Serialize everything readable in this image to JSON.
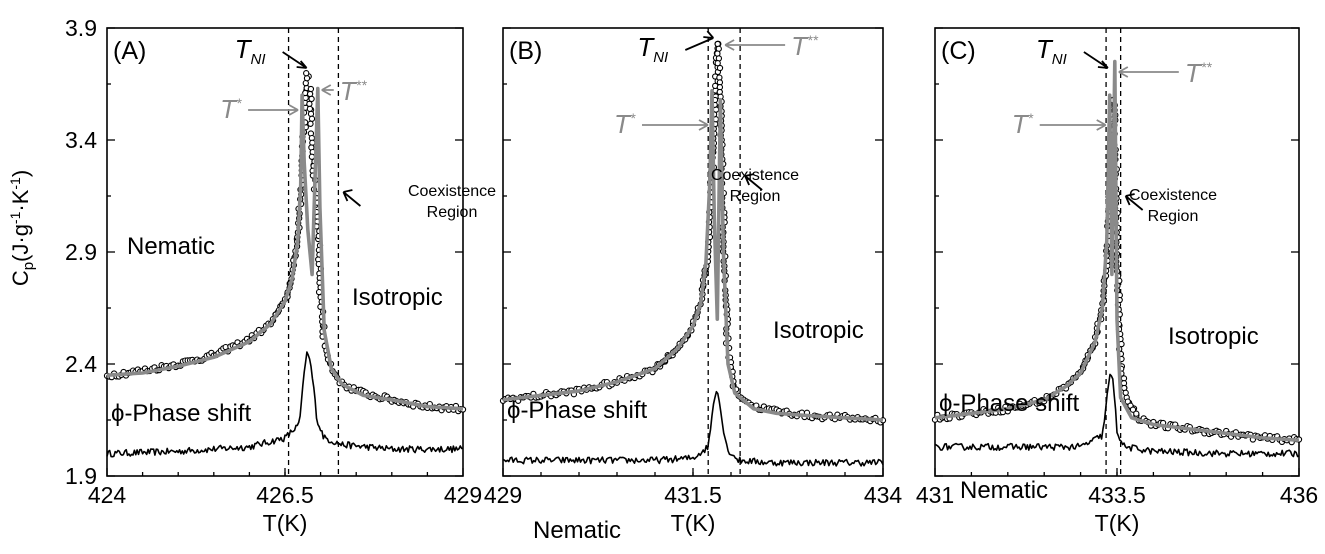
{
  "chart_data": [
    {
      "type": "scatter",
      "panel_label": "(A)",
      "xlabel": "T(K)",
      "ylabel": "Cp(J·g-1·K-1)",
      "xlim": [
        424,
        429
      ],
      "ylim": [
        1.9,
        3.9
      ],
      "xticks": [
        "424",
        "426.5",
        "429"
      ],
      "yticks": [
        "1.9",
        "2.4",
        "2.9",
        "3.4",
        "3.9"
      ],
      "x_ticks_values": [
        424,
        426.5,
        429
      ],
      "y_ticks_values": [
        1.9,
        2.4,
        2.9,
        3.4,
        3.9
      ],
      "y_axis_visible": true,
      "T_star": 426.74,
      "T_NI": 426.86,
      "T_star_star": 426.96,
      "coexistence_lines": [
        426.55,
        427.25
      ],
      "fit_curve": [
        [
          424,
          2.35
        ],
        [
          424.5,
          2.36
        ],
        [
          425,
          2.39
        ],
        [
          425.5,
          2.43
        ],
        [
          426,
          2.5
        ],
        [
          426.3,
          2.58
        ],
        [
          426.5,
          2.68
        ],
        [
          426.6,
          2.78
        ],
        [
          426.68,
          2.95
        ],
        [
          426.72,
          3.2
        ],
        [
          426.74,
          3.6
        ],
        [
          426.77,
          3.3
        ],
        [
          426.82,
          3.0
        ],
        [
          426.88,
          2.8
        ],
        [
          426.96,
          3.63
        ],
        [
          426.99,
          3.1
        ],
        [
          427.05,
          2.55
        ],
        [
          427.15,
          2.38
        ],
        [
          427.3,
          2.31
        ],
        [
          427.6,
          2.26
        ],
        [
          428,
          2.24
        ],
        [
          428.5,
          2.21
        ],
        [
          429,
          2.2
        ]
      ],
      "cp_points": [
        [
          424,
          2.35
        ],
        [
          424.5,
          2.37
        ],
        [
          425,
          2.4
        ],
        [
          425.5,
          2.44
        ],
        [
          426,
          2.51
        ],
        [
          426.3,
          2.58
        ],
        [
          426.5,
          2.68
        ],
        [
          426.6,
          2.8
        ],
        [
          426.7,
          3.05
        ],
        [
          426.78,
          3.5
        ],
        [
          426.82,
          3.72
        ],
        [
          426.85,
          3.65
        ],
        [
          426.88,
          3.45
        ],
        [
          426.91,
          3.2
        ],
        [
          426.94,
          3.1
        ],
        [
          426.97,
          2.95
        ],
        [
          427.0,
          2.7
        ],
        [
          427.05,
          2.5
        ],
        [
          427.15,
          2.38
        ],
        [
          427.3,
          2.31
        ],
        [
          427.6,
          2.27
        ],
        [
          428,
          2.24
        ],
        [
          428.5,
          2.21
        ],
        [
          429,
          2.2
        ]
      ],
      "phase_curve": [
        [
          424,
          2.0
        ],
        [
          425,
          2.01
        ],
        [
          426,
          2.03
        ],
        [
          426.5,
          2.07
        ],
        [
          426.7,
          2.13
        ],
        [
          426.8,
          2.45
        ],
        [
          426.85,
          2.42
        ],
        [
          426.9,
          2.3
        ],
        [
          426.95,
          2.15
        ],
        [
          427.05,
          2.07
        ],
        [
          427.3,
          2.04
        ],
        [
          428,
          2.02
        ],
        [
          429,
          2.02
        ]
      ],
      "labels": {
        "low_phase": "Nematic",
        "high_phase": "Isotropic",
        "phase_shift": "ϕ-Phase shift",
        "coexistence_line1": "Coexistence",
        "coexistence_line2": "Region"
      }
    },
    {
      "type": "scatter",
      "panel_label": "(B)",
      "xlabel": "T(K)",
      "ylabel": "",
      "xlim": [
        429,
        434
      ],
      "ylim": [
        1.9,
        3.9
      ],
      "xticks": [
        "429",
        "431.5",
        "434"
      ],
      "yticks": [],
      "x_ticks_values": [
        429,
        431.5,
        434
      ],
      "y_ticks_values": [
        1.9,
        2.4,
        2.9,
        3.4,
        3.9
      ],
      "y_axis_visible": false,
      "T_star": 431.75,
      "T_NI": 431.82,
      "T_star_star": 431.87,
      "coexistence_lines": [
        431.7,
        432.12
      ],
      "fit_curve": [
        [
          429,
          2.24
        ],
        [
          429.5,
          2.26
        ],
        [
          430,
          2.28
        ],
        [
          430.5,
          2.32
        ],
        [
          431,
          2.38
        ],
        [
          431.3,
          2.47
        ],
        [
          431.5,
          2.57
        ],
        [
          431.6,
          2.67
        ],
        [
          431.67,
          2.85
        ],
        [
          431.72,
          3.2
        ],
        [
          431.75,
          3.62
        ],
        [
          431.78,
          3.05
        ],
        [
          431.82,
          2.6
        ],
        [
          431.86,
          3.58
        ],
        [
          431.9,
          2.9
        ],
        [
          431.96,
          2.4
        ],
        [
          432.05,
          2.27
        ],
        [
          432.3,
          2.2
        ],
        [
          432.6,
          2.18
        ],
        [
          433,
          2.17
        ],
        [
          433.5,
          2.16
        ],
        [
          434,
          2.15
        ]
      ],
      "cp_points": [
        [
          429,
          2.24
        ],
        [
          429.5,
          2.26
        ],
        [
          430,
          2.28
        ],
        [
          430.5,
          2.32
        ],
        [
          431,
          2.38
        ],
        [
          431.3,
          2.47
        ],
        [
          431.5,
          2.57
        ],
        [
          431.6,
          2.67
        ],
        [
          431.7,
          2.9
        ],
        [
          431.76,
          3.3
        ],
        [
          431.8,
          3.6
        ],
        [
          431.83,
          3.85
        ],
        [
          431.85,
          3.7
        ],
        [
          431.88,
          3.25
        ],
        [
          431.92,
          2.75
        ],
        [
          431.96,
          2.45
        ],
        [
          432.05,
          2.28
        ],
        [
          432.3,
          2.21
        ],
        [
          432.6,
          2.19
        ],
        [
          433,
          2.17
        ],
        [
          433.5,
          2.16
        ],
        [
          434,
          2.15
        ]
      ],
      "phase_curve": [
        [
          429,
          1.97
        ],
        [
          430,
          1.97
        ],
        [
          431,
          1.97
        ],
        [
          431.5,
          1.98
        ],
        [
          431.7,
          2.03
        ],
        [
          431.78,
          2.25
        ],
        [
          431.82,
          2.3
        ],
        [
          431.88,
          2.15
        ],
        [
          431.95,
          2.02
        ],
        [
          432.1,
          1.97
        ],
        [
          432.5,
          1.96
        ],
        [
          433,
          1.96
        ],
        [
          434,
          1.96
        ]
      ],
      "labels": {
        "low_phase": "Nematic",
        "high_phase": "Isotropic",
        "phase_shift": "ϕ-Phase shift",
        "coexistence_line1": "Coexistence",
        "coexistence_line2": "Region"
      }
    },
    {
      "type": "scatter",
      "panel_label": "(C)",
      "xlabel": "T(K)",
      "ylabel": "",
      "xlim": [
        431,
        436
      ],
      "ylim": [
        1.9,
        3.9
      ],
      "xticks": [
        "431",
        "433.5",
        "436"
      ],
      "yticks": [],
      "x_ticks_values": [
        431,
        433.5,
        436
      ],
      "y_ticks_values": [
        1.9,
        2.4,
        2.9,
        3.4,
        3.9
      ],
      "y_axis_visible": false,
      "T_star": 433.4,
      "T_NI": 433.43,
      "T_star_star": 433.47,
      "coexistence_lines": [
        433.35,
        433.55
      ],
      "fit_curve": [
        [
          431,
          2.16
        ],
        [
          431.5,
          2.18
        ],
        [
          432,
          2.2
        ],
        [
          432.5,
          2.24
        ],
        [
          432.8,
          2.3
        ],
        [
          433,
          2.36
        ],
        [
          433.2,
          2.5
        ],
        [
          433.3,
          2.65
        ],
        [
          433.36,
          2.95
        ],
        [
          433.4,
          3.6
        ],
        [
          433.43,
          2.8
        ],
        [
          433.47,
          3.75
        ],
        [
          433.5,
          2.6
        ],
        [
          433.55,
          2.25
        ],
        [
          433.7,
          2.16
        ],
        [
          434,
          2.13
        ],
        [
          434.5,
          2.11
        ],
        [
          435,
          2.09
        ],
        [
          435.5,
          2.07
        ],
        [
          436,
          2.06
        ]
      ],
      "cp_points": [
        [
          431,
          2.16
        ],
        [
          431.5,
          2.18
        ],
        [
          432,
          2.2
        ],
        [
          432.5,
          2.24
        ],
        [
          432.8,
          2.3
        ],
        [
          433,
          2.36
        ],
        [
          433.2,
          2.5
        ],
        [
          433.3,
          2.66
        ],
        [
          433.38,
          2.95
        ],
        [
          433.42,
          3.3
        ],
        [
          433.45,
          3.6
        ],
        [
          433.47,
          3.4
        ],
        [
          433.5,
          2.9
        ],
        [
          433.53,
          2.6
        ],
        [
          433.56,
          2.4
        ],
        [
          433.62,
          2.25
        ],
        [
          433.8,
          2.16
        ],
        [
          434,
          2.13
        ],
        [
          434.5,
          2.11
        ],
        [
          435,
          2.09
        ],
        [
          435.5,
          2.07
        ],
        [
          436,
          2.06
        ]
      ],
      "phase_curve": [
        [
          431,
          2.03
        ],
        [
          432,
          2.03
        ],
        [
          433,
          2.03
        ],
        [
          433.3,
          2.08
        ],
        [
          433.4,
          2.35
        ],
        [
          433.45,
          2.32
        ],
        [
          433.5,
          2.1
        ],
        [
          433.6,
          2.03
        ],
        [
          434,
          2.01
        ],
        [
          435,
          2.0
        ],
        [
          436,
          2.0
        ]
      ],
      "labels": {
        "low_phase": "Nematic",
        "high_phase": "Isotropic",
        "phase_shift": "ϕ-Phase shift",
        "coexistence_line1": "Coexistence",
        "coexistence_line2": "Region"
      }
    }
  ],
  "legend": {
    "T_NI_main": "T",
    "T_NI_sub": "NI",
    "T_star_main": "T",
    "T_star_sup": "*",
    "T_star_star_main": "T",
    "T_star_star_sup": "**"
  },
  "colors": {
    "axes": "#000000",
    "fit_curve": "#8a8a8a",
    "data_points": "#000000",
    "T_star_label": "#8a8a8a",
    "T_NI_label": "#000000"
  }
}
